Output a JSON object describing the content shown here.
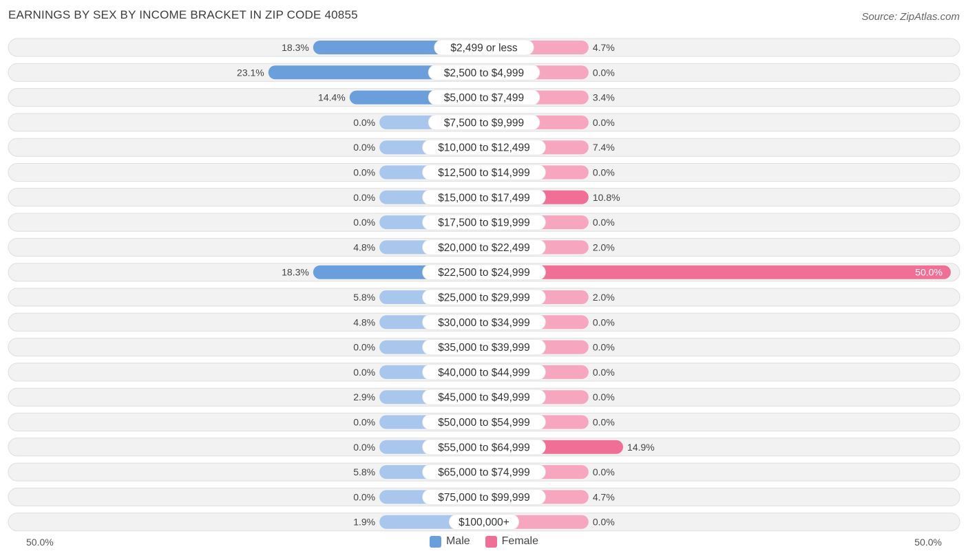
{
  "title": "EARNINGS BY SEX BY INCOME BRACKET IN ZIP CODE 40855",
  "source": "Source: ZipAtlas.com",
  "axis": {
    "left_label": "50.0%",
    "right_label": "50.0%"
  },
  "legend": {
    "male": "Male",
    "female": "Female"
  },
  "colors": {
    "male_strong": "#6a9fdc",
    "male_light": "#a9c7ec",
    "female_strong": "#f06f96",
    "female_light": "#f7a6c0",
    "row_bg": "#f2f2f2",
    "row_border": "#dedede"
  },
  "chart_data": {
    "type": "bar",
    "orientation": "horizontal-diverging",
    "title": "EARNINGS BY SEX BY INCOME BRACKET IN ZIP CODE 40855",
    "xlim": [
      -50,
      50
    ],
    "categories": [
      "$2,499 or less",
      "$2,500 to $4,999",
      "$5,000 to $7,499",
      "$7,500 to $9,999",
      "$10,000 to $12,499",
      "$12,500 to $14,999",
      "$15,000 to $17,499",
      "$17,500 to $19,999",
      "$20,000 to $22,499",
      "$22,500 to $24,999",
      "$25,000 to $29,999",
      "$30,000 to $34,999",
      "$35,000 to $39,999",
      "$40,000 to $44,999",
      "$45,000 to $49,999",
      "$50,000 to $54,999",
      "$55,000 to $64,999",
      "$65,000 to $74,999",
      "$75,000 to $99,999",
      "$100,000+"
    ],
    "series": [
      {
        "name": "Male",
        "values": [
          18.3,
          23.1,
          14.4,
          0.0,
          0.0,
          0.0,
          0.0,
          0.0,
          4.8,
          18.3,
          5.8,
          4.8,
          0.0,
          0.0,
          2.9,
          0.0,
          0.0,
          5.8,
          0.0,
          1.9
        ],
        "labels": [
          "18.3%",
          "23.1%",
          "14.4%",
          "0.0%",
          "0.0%",
          "0.0%",
          "0.0%",
          "0.0%",
          "4.8%",
          "18.3%",
          "5.8%",
          "4.8%",
          "0.0%",
          "0.0%",
          "2.9%",
          "0.0%",
          "0.0%",
          "5.8%",
          "0.0%",
          "1.9%"
        ]
      },
      {
        "name": "Female",
        "values": [
          4.7,
          0.0,
          3.4,
          0.0,
          7.4,
          0.0,
          10.8,
          0.0,
          2.0,
          50.0,
          2.0,
          0.0,
          0.0,
          0.0,
          0.0,
          0.0,
          14.9,
          0.0,
          4.7,
          0.0
        ],
        "labels": [
          "4.7%",
          "0.0%",
          "3.4%",
          "0.0%",
          "7.4%",
          "0.0%",
          "10.8%",
          "0.0%",
          "2.0%",
          "50.0%",
          "2.0%",
          "0.0%",
          "0.0%",
          "0.0%",
          "0.0%",
          "0.0%",
          "14.9%",
          "0.0%",
          "4.7%",
          "0.0%"
        ]
      }
    ]
  }
}
